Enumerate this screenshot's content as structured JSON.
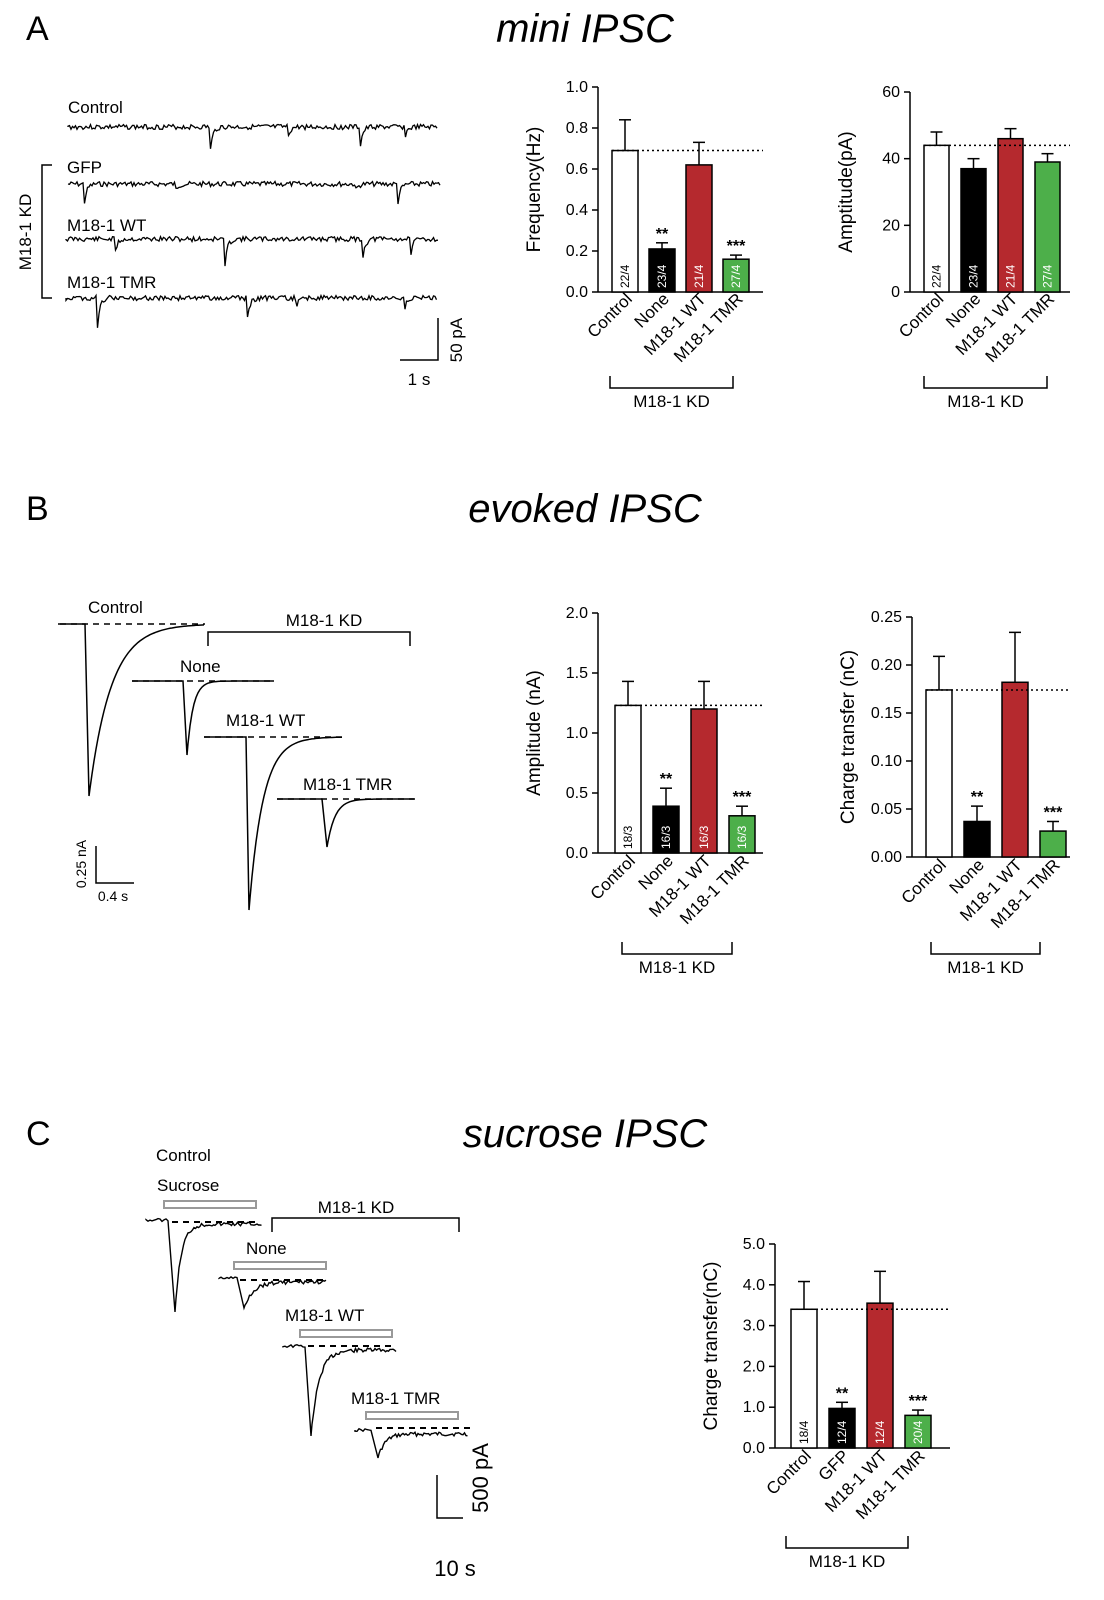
{
  "panels": {
    "A": {
      "letter": "A",
      "title": "mini IPSC"
    },
    "B": {
      "letter": "B",
      "title": "evoked IPSC"
    },
    "C": {
      "letter": "C",
      "title": "sucrose IPSC"
    }
  },
  "traces": {
    "A": {
      "labels": [
        "Control",
        "GFP",
        "M18-1 WT",
        "M18-1 TMR"
      ],
      "group_label": "M18-1 KD",
      "scale_x": "1 s",
      "scale_y": "50 pA"
    },
    "B": {
      "labels": [
        "Control",
        "None",
        "M18-1  WT",
        "M18-1  TMR"
      ],
      "group_label": "M18-1 KD",
      "scale_x": "0.4 s",
      "scale_y": "0.25 nA"
    },
    "C": {
      "labels": [
        "Control",
        "None",
        "M18-1 WT",
        "M18-1 TMR"
      ],
      "stimulus_label": "Sucrose",
      "group_label": "M18-1 KD",
      "scale_x": "10 s",
      "scale_y": "500 pA"
    }
  },
  "colors": {
    "Control": "#ffffff",
    "None": "#000000",
    "M18-1 WT": "#b5292e",
    "M18-1 TMR": "#4daf4a",
    "n_on_light": "#000000",
    "n_on_dark": "#ffffff"
  },
  "chart_data": [
    {
      "id": "A-freq",
      "type": "bar",
      "categories": [
        "Control",
        "None",
        "M18-1 WT",
        "M18-1 TMR"
      ],
      "values": [
        0.69,
        0.21,
        0.62,
        0.16
      ],
      "errors": [
        0.15,
        0.03,
        0.11,
        0.02
      ],
      "n": [
        "22/4",
        "23/4",
        "21/4",
        "27/4"
      ],
      "significance": [
        "",
        "**",
        "",
        "***"
      ],
      "reference_line": 0.69,
      "ylabel": "Frequency(Hz)",
      "ylim": [
        0,
        1.0
      ],
      "yticks": [
        "0.0",
        "0.2",
        "0.4",
        "0.6",
        "0.8",
        "1.0"
      ],
      "group_label": "M18-1 KD"
    },
    {
      "id": "A-amp",
      "type": "bar",
      "categories": [
        "Control",
        "None",
        "M18-1 WT",
        "M18-1 TMR"
      ],
      "values": [
        44,
        37,
        46,
        39
      ],
      "errors": [
        4,
        3,
        3,
        2.5
      ],
      "n": [
        "22/4",
        "23/4",
        "21/4",
        "27/4"
      ],
      "significance": [
        "",
        "",
        "",
        ""
      ],
      "reference_line": 44,
      "ylabel": "Amptitude(pA)",
      "ylim": [
        0,
        60
      ],
      "yticks": [
        "0",
        "20",
        "40",
        "60"
      ],
      "group_label": "M18-1 KD"
    },
    {
      "id": "B-amp",
      "type": "bar",
      "categories": [
        "Control",
        "None",
        "M18-1 WT",
        "M18-1 TMR"
      ],
      "values": [
        1.23,
        0.39,
        1.2,
        0.31
      ],
      "errors": [
        0.2,
        0.15,
        0.23,
        0.08
      ],
      "n": [
        "18/3",
        "16/3",
        "16/3",
        "16/3"
      ],
      "significance": [
        "",
        "**",
        "",
        "***"
      ],
      "reference_line": 1.23,
      "ylabel": "Amplitude (nA)",
      "ylim": [
        0,
        2.0
      ],
      "yticks": [
        "0.0",
        "0.5",
        "1.0",
        "1.5",
        "2.0"
      ],
      "group_label": "M18-1 KD"
    },
    {
      "id": "B-charge",
      "type": "bar",
      "categories": [
        "Control",
        "None",
        "M18-1 WT",
        "M18-1 TMR"
      ],
      "values": [
        0.174,
        0.037,
        0.182,
        0.027
      ],
      "errors": [
        0.035,
        0.016,
        0.052,
        0.01
      ],
      "n": [
        "",
        "",
        "",
        ""
      ],
      "significance": [
        "",
        "**",
        "",
        "***"
      ],
      "reference_line": 0.174,
      "ylabel": "Charge transfer (nC)",
      "ylim": [
        0,
        0.25
      ],
      "yticks": [
        "0.00",
        "0.05",
        "0.10",
        "0.15",
        "0.20",
        "0.25"
      ],
      "group_label": "M18-1 KD"
    },
    {
      "id": "C-charge",
      "type": "bar",
      "categories": [
        "Control",
        "GFP",
        "M18-1 WT",
        "M18-1 TMR"
      ],
      "values": [
        3.4,
        0.97,
        3.55,
        0.8
      ],
      "errors": [
        0.68,
        0.15,
        0.78,
        0.13
      ],
      "n": [
        "18/4",
        "12/4",
        "12/4",
        "20/4"
      ],
      "significance": [
        "",
        "**",
        "",
        "***"
      ],
      "reference_line": 3.4,
      "ylabel": "Charge transfer(nC)",
      "ylim": [
        0,
        5.0
      ],
      "yticks": [
        "0.0",
        "1.0",
        "2.0",
        "3.0",
        "4.0",
        "5.0"
      ],
      "group_label": "M18-1 KD"
    }
  ]
}
